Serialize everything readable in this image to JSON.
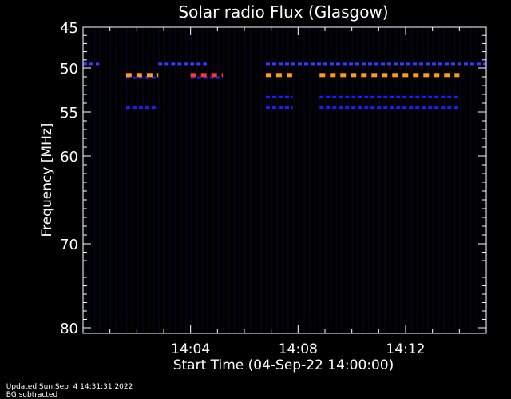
{
  "chart_data": {
    "type": "heatmap",
    "title": "Solar radio Flux (Glasgow)",
    "xlabel": "Start Time (04-Sep-22 14:00:00)",
    "ylabel": "Frequency [MHz]",
    "x_unit": "minutes after 14:00:00",
    "xlim": [
      0,
      15
    ],
    "ylim": [
      45,
      80
    ],
    "x_ticks": [
      {
        "value": 4,
        "label": "14:04"
      },
      {
        "value": 8,
        "label": "14:08"
      },
      {
        "value": 12,
        "label": "14:12"
      }
    ],
    "y_ticks": [
      {
        "value": 45,
        "label": "45"
      },
      {
        "value": 50,
        "label": "50"
      },
      {
        "value": 55,
        "label": "55"
      },
      {
        "value": 60,
        "label": "60"
      },
      {
        "value": 70,
        "label": "70"
      },
      {
        "value": 80,
        "label": "80"
      }
    ],
    "colors": {
      "background": "#000000",
      "low": "#0a0a2a",
      "band_blue": "#1c1cff",
      "band_light_blue": "#3a3aff",
      "strong_orange": "#ff9a1a",
      "strong_red": "#ff3a1a"
    },
    "strong_bands": [
      {
        "freq_mhz": 50.8,
        "x_start": 1.6,
        "x_end": 2.8,
        "color": "strong_orange"
      },
      {
        "freq_mhz": 50.8,
        "x_start": 4.0,
        "x_end": 5.2,
        "color": "strong_red"
      },
      {
        "freq_mhz": 50.8,
        "x_start": 6.8,
        "x_end": 7.8,
        "color": "strong_orange"
      },
      {
        "freq_mhz": 50.8,
        "x_start": 8.8,
        "x_end": 14.0,
        "color": "strong_orange"
      }
    ],
    "weak_bands": [
      {
        "freq_mhz": 49.5,
        "x_start": 0.0,
        "x_end": 0.6,
        "color": "band_light_blue"
      },
      {
        "freq_mhz": 49.5,
        "x_start": 2.8,
        "x_end": 4.6,
        "color": "band_light_blue"
      },
      {
        "freq_mhz": 49.5,
        "x_start": 6.8,
        "x_end": 15.0,
        "color": "band_light_blue"
      },
      {
        "freq_mhz": 51.1,
        "x_start": 1.6,
        "x_end": 2.8,
        "color": "band_blue"
      },
      {
        "freq_mhz": 51.1,
        "x_start": 4.0,
        "x_end": 5.2,
        "color": "band_blue"
      },
      {
        "freq_mhz": 53.3,
        "x_start": 6.8,
        "x_end": 7.8,
        "color": "band_blue"
      },
      {
        "freq_mhz": 53.3,
        "x_start": 8.8,
        "x_end": 14.0,
        "color": "band_blue"
      },
      {
        "freq_mhz": 54.5,
        "x_start": 1.6,
        "x_end": 2.8,
        "color": "band_blue"
      },
      {
        "freq_mhz": 54.5,
        "x_start": 6.8,
        "x_end": 7.8,
        "color": "band_blue"
      },
      {
        "freq_mhz": 54.5,
        "x_start": 8.8,
        "x_end": 14.0,
        "color": "band_blue"
      }
    ]
  },
  "footer": {
    "updated": "Updated Sun Sep  4 14:31:31 2022",
    "note": "BG subtracted"
  }
}
